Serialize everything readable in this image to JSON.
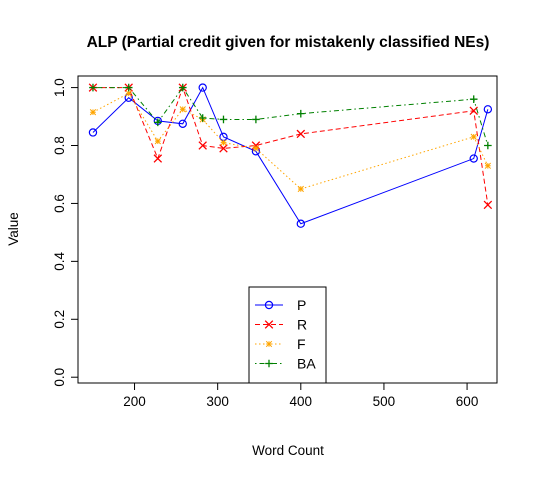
{
  "chart_data": {
    "type": "line",
    "title": "ALP (Partial credit given for mistakenly classified NEs)",
    "xlabel": "Word Count",
    "ylabel": "Value",
    "x": [
      150,
      193,
      228,
      258,
      282,
      307,
      346,
      400,
      608,
      625
    ],
    "xlim": [
      132,
      636
    ],
    "ylim": [
      -0.02,
      1.04
    ],
    "xticks": [
      200,
      300,
      400,
      500,
      600
    ],
    "yticks": [
      0.0,
      0.2,
      0.4,
      0.6,
      0.8,
      1.0
    ],
    "xtick_labels": [
      "200",
      "300",
      "400",
      "500",
      "600"
    ],
    "ytick_labels": [
      "0.0",
      "0.2",
      "0.4",
      "0.6",
      "0.8",
      "1.0"
    ],
    "legend_position": "bottom-center",
    "grid": false,
    "series": [
      {
        "name": "P",
        "color": "#0000ff",
        "marker": "circle",
        "dash": "solid",
        "values": [
          0.845,
          0.965,
          0.885,
          0.875,
          1.0,
          0.83,
          0.78,
          0.53,
          0.755,
          0.925
        ]
      },
      {
        "name": "R",
        "color": "#ff0000",
        "marker": "x",
        "dash": "dashed",
        "values": [
          1.0,
          1.0,
          0.755,
          1.0,
          0.8,
          0.79,
          0.8,
          0.84,
          0.92,
          0.595
        ]
      },
      {
        "name": "F",
        "color": "#ffa500",
        "marker": "asterisk",
        "dash": "dotted",
        "values": [
          0.915,
          0.98,
          0.815,
          0.925,
          0.89,
          0.81,
          0.79,
          0.65,
          0.83,
          0.73
        ]
      },
      {
        "name": "BA",
        "color": "#008000",
        "marker": "plus",
        "dash": "dotdash",
        "values": [
          1.0,
          1.0,
          0.88,
          1.0,
          0.895,
          0.89,
          0.89,
          0.91,
          0.96,
          0.8
        ]
      }
    ]
  }
}
